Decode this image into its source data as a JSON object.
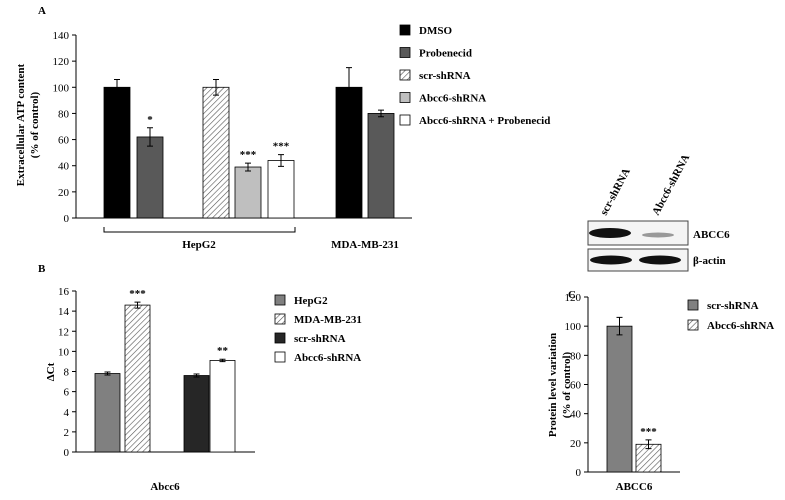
{
  "chart_data": [
    {
      "type": "bar",
      "label": "A",
      "y_label": [
        "Extracellular ATP content",
        "(% of control)"
      ],
      "categories": [
        "HepG2",
        "MDA-MB-231"
      ],
      "series": [
        {
          "name": "DMSO",
          "color": "#000000",
          "hatch": false,
          "values": [
            100,
            100
          ],
          "errors": [
            6,
            15
          ],
          "significance": [
            null,
            null
          ]
        },
        {
          "name": "Probenecid",
          "color": "#595959",
          "hatch": false,
          "values": [
            62,
            80
          ],
          "errors": [
            7,
            2.5
          ],
          "significance": [
            "*",
            null
          ]
        },
        {
          "name": "scr-shRNA",
          "color": "#ffffff",
          "hatch": true,
          "values": [
            100,
            null
          ],
          "errors": [
            6,
            null
          ],
          "significance": [
            null,
            null
          ]
        },
        {
          "name": "Abcc6-shRNA",
          "color": "#bfbfbf",
          "hatch": false,
          "values": [
            39,
            null
          ],
          "errors": [
            3,
            null
          ],
          "significance": [
            "***",
            null
          ]
        },
        {
          "name": "Abcc6-shRNA + Probenecid",
          "color": "#ffffff",
          "hatch": false,
          "values": [
            44,
            null
          ],
          "errors": [
            4.5,
            null
          ],
          "significance": [
            "***",
            null
          ]
        }
      ],
      "ylim": [
        0,
        140
      ],
      "yticks": [
        0,
        20,
        40,
        60,
        80,
        100,
        120,
        140
      ],
      "grid": false
    },
    {
      "type": "bar",
      "label": "B",
      "y_label": [
        "ΔCt"
      ],
      "categories": [
        "Abcc6"
      ],
      "series": [
        {
          "name": "HepG2",
          "color": "#808080",
          "hatch": false,
          "values": [
            7.8
          ],
          "errors": [
            0.15
          ],
          "significance": [
            null
          ]
        },
        {
          "name": "MDA-MB-231",
          "color": "#ffffff",
          "hatch": true,
          "values": [
            14.6
          ],
          "errors": [
            0.3
          ],
          "significance": [
            "***"
          ]
        },
        {
          "name": "scr-shRNA",
          "color": "#262626",
          "hatch": false,
          "values": [
            7.6
          ],
          "errors": [
            0.15
          ],
          "significance": [
            null
          ]
        },
        {
          "name": "Abcc6-shRNA",
          "color": "#ffffff",
          "hatch": false,
          "values": [
            9.1
          ],
          "errors": [
            0.12
          ],
          "significance": [
            "**"
          ]
        }
      ],
      "ylim": [
        0,
        16
      ],
      "yticks": [
        0,
        2,
        4,
        6,
        8,
        10,
        12,
        14,
        16
      ],
      "grid": false
    },
    {
      "type": "bar",
      "label": "C",
      "y_label": [
        "Protein level variation",
        "(% of control)"
      ],
      "categories": [
        "ABCC6"
      ],
      "series": [
        {
          "name": "scr-shRNA",
          "color": "#808080",
          "hatch": false,
          "values": [
            100
          ],
          "errors": [
            6
          ],
          "significance": [
            null
          ]
        },
        {
          "name": "Abcc6-shRNA",
          "color": "#ffffff",
          "hatch": true,
          "values": [
            19
          ],
          "errors": [
            3
          ],
          "significance": [
            "***"
          ]
        }
      ],
      "ylim": [
        0,
        120
      ],
      "yticks": [
        0,
        20,
        40,
        60,
        80,
        100,
        120
      ],
      "grid": false
    }
  ],
  "blot": {
    "lanes": [
      "scr-shRNA",
      "Abcc6-shRNA"
    ],
    "bands": [
      "ABCC6",
      "β-actin"
    ]
  }
}
